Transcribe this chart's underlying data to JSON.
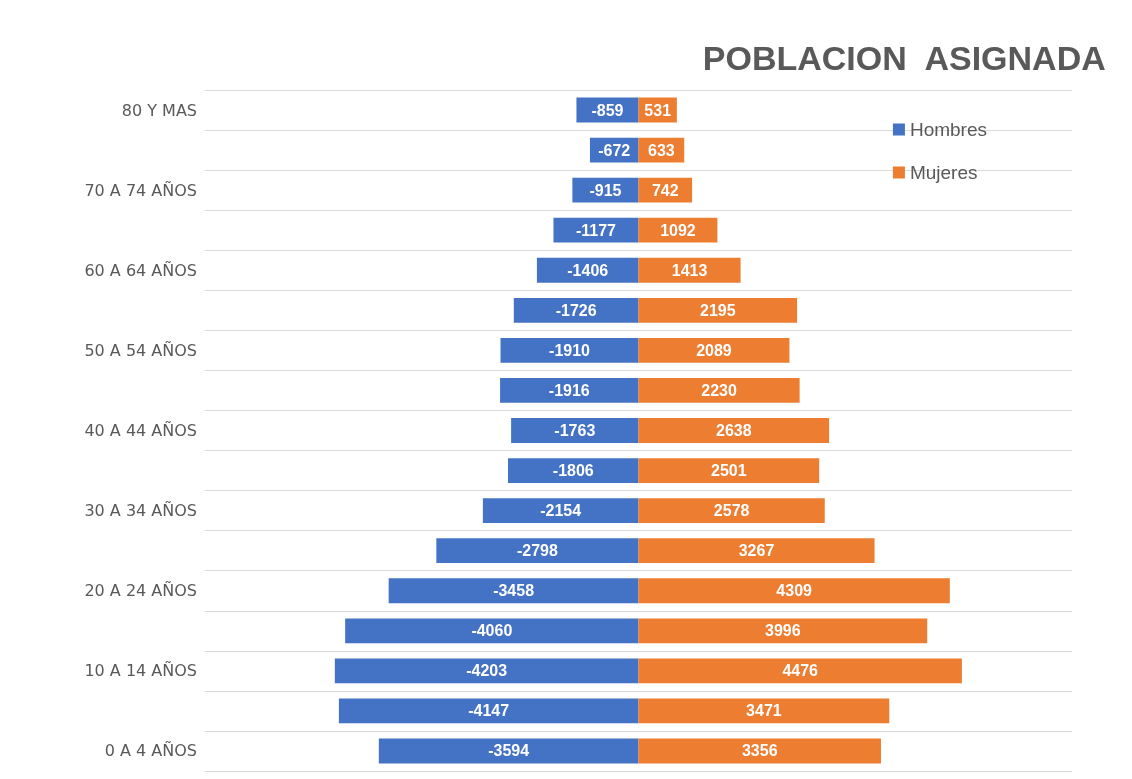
{
  "chart_data": {
    "type": "bar",
    "title": "POBLACION  ASIGNADA",
    "orientation": "horizontal",
    "stacked": true,
    "categories": [
      "80 Y MAS",
      null,
      "70 A 74 AÑOS",
      null,
      "60 A 64 AÑOS",
      null,
      "50 A 54 AÑOS",
      null,
      "40 A 44 AÑOS",
      null,
      "30 A 34 AÑOS",
      null,
      "20 A 24 AÑOS",
      null,
      "10 A 14 AÑOS",
      null,
      "0 A 4 AÑOS"
    ],
    "series": [
      {
        "name": "Hombres",
        "color": "#4472c4",
        "values": [
          -859,
          -672,
          -915,
          -1177,
          -1406,
          -1726,
          -1910,
          -1916,
          -1763,
          -1806,
          -2154,
          -2798,
          -3458,
          -4060,
          -4203,
          -4147,
          -3594
        ]
      },
      {
        "name": "Mujeres",
        "color": "#ed7d31",
        "values": [
          531,
          633,
          742,
          1092,
          1413,
          2195,
          2089,
          2230,
          2638,
          2501,
          2578,
          3267,
          4309,
          3996,
          4476,
          3471,
          3356
        ]
      }
    ],
    "data_labels": true,
    "grid": true,
    "legend": "top right"
  }
}
